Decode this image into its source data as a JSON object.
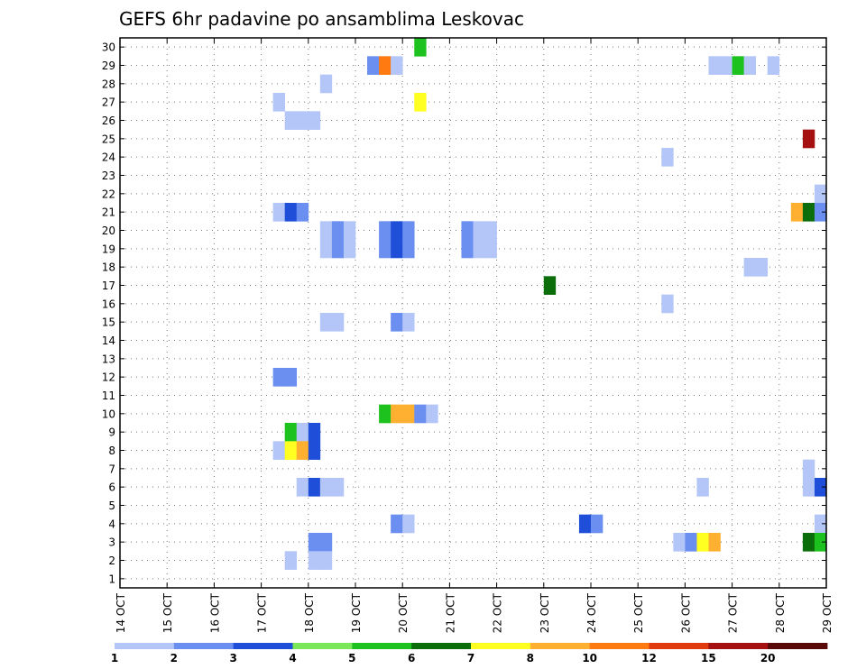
{
  "chart_data": {
    "type": "heatmap",
    "title": "GEFS 6hr padavine po ansamblima Leskovac",
    "xlabel": "",
    "ylabel": "",
    "x_ticks": [
      "14 OCT",
      "15 OCT",
      "16 OCT",
      "17 OCT",
      "18 OCT",
      "19 OCT",
      "20 OCT",
      "21 OCT",
      "22 OCT",
      "23 OCT",
      "24 OCT",
      "25 OCT",
      "26 OCT",
      "27 OCT",
      "28 OCT",
      "29 OCT"
    ],
    "y_ticks": [
      "1",
      "2",
      "3",
      "4",
      "5",
      "6",
      "7",
      "8",
      "9",
      "10",
      "11",
      "12",
      "13",
      "14",
      "15",
      "16",
      "17",
      "18",
      "19",
      "20",
      "21",
      "22",
      "23",
      "24",
      "25",
      "26",
      "27",
      "28",
      "29",
      "30"
    ],
    "xlim": [
      0,
      60
    ],
    "ylim": [
      0.5,
      30.5
    ],
    "x_unit": "6-hour steps from 14 OCT 00Z",
    "grid": true,
    "colorbar": {
      "labels": [
        "1",
        "2",
        "3",
        "4",
        "5",
        "6",
        "7",
        "8",
        "10",
        "12",
        "15",
        "20"
      ],
      "colors": [
        "#b3c6f7",
        "#6b8ff0",
        "#1f4fd8",
        "#7be85a",
        "#1ec21e",
        "#0b6e0b",
        "#ffff22",
        "#ffb031",
        "#ff7a10",
        "#e03a0e",
        "#a51010",
        "#5a0909"
      ]
    },
    "cells": [
      {
        "m": 30,
        "t": 25.5,
        "v": 5
      },
      {
        "m": 29,
        "t": 21.5,
        "v": 2
      },
      {
        "m": 29,
        "t": 22.5,
        "v": 10
      },
      {
        "m": 29,
        "t": 23.5,
        "v": 1
      },
      {
        "m": 29,
        "t": 50.5,
        "v": 1
      },
      {
        "m": 29,
        "t": 51.5,
        "v": 1
      },
      {
        "m": 29,
        "t": 52.5,
        "v": 5
      },
      {
        "m": 29,
        "t": 53.5,
        "v": 1
      },
      {
        "m": 29,
        "t": 55.5,
        "v": 1
      },
      {
        "m": 28,
        "t": 17.5,
        "v": 1
      },
      {
        "m": 27,
        "t": 13.5,
        "v": 1
      },
      {
        "m": 27,
        "t": 25.5,
        "v": 7
      },
      {
        "m": 26,
        "t": 14.5,
        "v": 1
      },
      {
        "m": 26,
        "t": 15.5,
        "v": 1
      },
      {
        "m": 26,
        "t": 16.5,
        "v": 1
      },
      {
        "m": 25,
        "t": 58.5,
        "v": 15
      },
      {
        "m": 24,
        "t": 46.5,
        "v": 1
      },
      {
        "m": 22,
        "t": 59.5,
        "v": 1
      },
      {
        "m": 21,
        "t": 13.5,
        "v": 1
      },
      {
        "m": 21,
        "t": 14.5,
        "v": 3
      },
      {
        "m": 21,
        "t": 15.5,
        "v": 2
      },
      {
        "m": 21,
        "t": 57.5,
        "v": 8
      },
      {
        "m": 21,
        "t": 58.5,
        "v": 6
      },
      {
        "m": 21,
        "t": 59.5,
        "v": 2
      },
      {
        "m": 20,
        "t": 17.5,
        "v": 1
      },
      {
        "m": 20,
        "t": 18.5,
        "v": 2
      },
      {
        "m": 20,
        "t": 19.5,
        "v": 1
      },
      {
        "m": 20,
        "t": 22.5,
        "v": 2
      },
      {
        "m": 20,
        "t": 23.5,
        "v": 3
      },
      {
        "m": 20,
        "t": 24.5,
        "v": 2
      },
      {
        "m": 20,
        "t": 29.5,
        "v": 2
      },
      {
        "m": 20,
        "t": 30.5,
        "v": 1
      },
      {
        "m": 20,
        "t": 31.5,
        "v": 1
      },
      {
        "m": 19,
        "t": 17.5,
        "v": 1
      },
      {
        "m": 19,
        "t": 18.5,
        "v": 2
      },
      {
        "m": 19,
        "t": 19.5,
        "v": 1
      },
      {
        "m": 19,
        "t": 22.5,
        "v": 2
      },
      {
        "m": 19,
        "t": 23.5,
        "v": 3
      },
      {
        "m": 19,
        "t": 24.5,
        "v": 2
      },
      {
        "m": 19,
        "t": 29.5,
        "v": 2
      },
      {
        "m": 19,
        "t": 30.5,
        "v": 1
      },
      {
        "m": 19,
        "t": 31.5,
        "v": 1
      },
      {
        "m": 18,
        "t": 53.5,
        "v": 1
      },
      {
        "m": 18,
        "t": 54.5,
        "v": 1
      },
      {
        "m": 17,
        "t": 36.5,
        "v": 6
      },
      {
        "m": 16,
        "t": 46.5,
        "v": 1
      },
      {
        "m": 15,
        "t": 17.5,
        "v": 1
      },
      {
        "m": 15,
        "t": 18.5,
        "v": 1
      },
      {
        "m": 15,
        "t": 23.5,
        "v": 2
      },
      {
        "m": 15,
        "t": 24.5,
        "v": 1
      },
      {
        "m": 12,
        "t": 13.5,
        "v": 2
      },
      {
        "m": 12,
        "t": 14.5,
        "v": 2
      },
      {
        "m": 10,
        "t": 22.5,
        "v": 5
      },
      {
        "m": 10,
        "t": 23.5,
        "v": 8
      },
      {
        "m": 10,
        "t": 24.5,
        "v": 8
      },
      {
        "m": 10,
        "t": 25.5,
        "v": 2
      },
      {
        "m": 10,
        "t": 26.5,
        "v": 1
      },
      {
        "m": 9,
        "t": 14.5,
        "v": 5
      },
      {
        "m": 9,
        "t": 15.5,
        "v": 1
      },
      {
        "m": 9,
        "t": 16.5,
        "v": 3
      },
      {
        "m": 8,
        "t": 13.5,
        "v": 1
      },
      {
        "m": 8,
        "t": 14.5,
        "v": 7
      },
      {
        "m": 8,
        "t": 15.5,
        "v": 8
      },
      {
        "m": 8,
        "t": 16.5,
        "v": 3
      },
      {
        "m": 7,
        "t": 58.5,
        "v": 1
      },
      {
        "m": 6,
        "t": 15.5,
        "v": 1
      },
      {
        "m": 6,
        "t": 16.5,
        "v": 3
      },
      {
        "m": 6,
        "t": 17.5,
        "v": 1
      },
      {
        "m": 6,
        "t": 18.5,
        "v": 1
      },
      {
        "m": 6,
        "t": 49.5,
        "v": 1
      },
      {
        "m": 6,
        "t": 58.5,
        "v": 1
      },
      {
        "m": 6,
        "t": 59.5,
        "v": 3
      },
      {
        "m": 4,
        "t": 23.5,
        "v": 2
      },
      {
        "m": 4,
        "t": 24.5,
        "v": 1
      },
      {
        "m": 4,
        "t": 39.5,
        "v": 3
      },
      {
        "m": 4,
        "t": 40.5,
        "v": 2
      },
      {
        "m": 4,
        "t": 59.5,
        "v": 1
      },
      {
        "m": 3,
        "t": 16.5,
        "v": 2
      },
      {
        "m": 3,
        "t": 17.5,
        "v": 2
      },
      {
        "m": 3,
        "t": 47.5,
        "v": 1
      },
      {
        "m": 3,
        "t": 48.5,
        "v": 2
      },
      {
        "m": 3,
        "t": 49.5,
        "v": 7
      },
      {
        "m": 3,
        "t": 50.5,
        "v": 8
      },
      {
        "m": 3,
        "t": 58.5,
        "v": 6
      },
      {
        "m": 3,
        "t": 59.5,
        "v": 5
      },
      {
        "m": 2,
        "t": 14.5,
        "v": 1
      },
      {
        "m": 2,
        "t": 16.5,
        "v": 1
      },
      {
        "m": 2,
        "t": 17.5,
        "v": 1
      }
    ]
  }
}
